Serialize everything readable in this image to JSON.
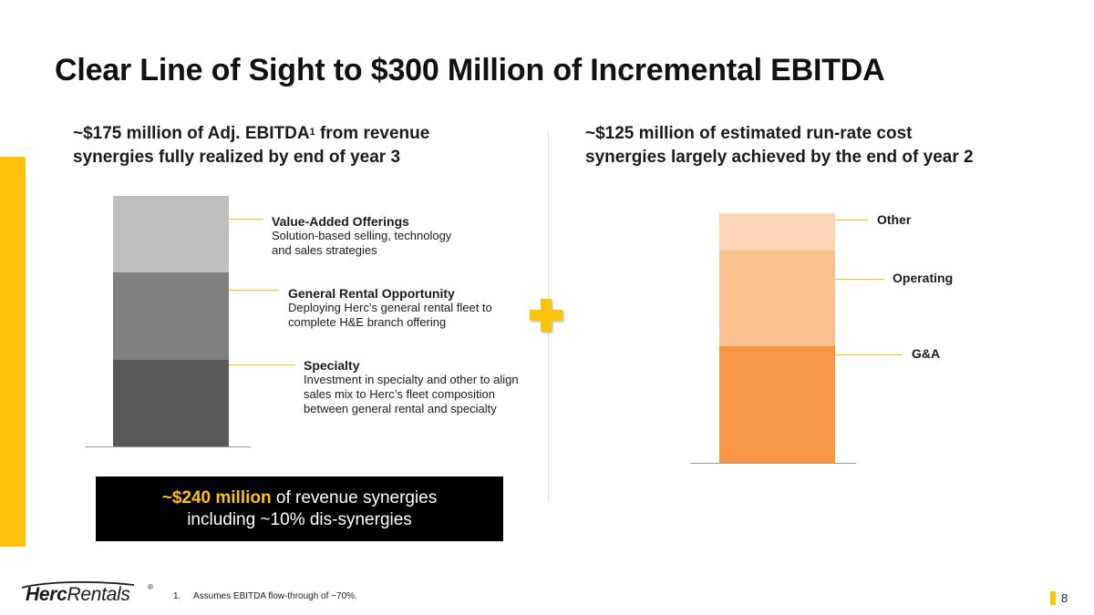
{
  "title": "Clear Line of Sight to $300 Million of Incremental EBITDA",
  "left": {
    "heading_line1_pre": "~$175 million of Adj. EBITDA",
    "heading_sup": "1",
    "heading_line1_post": " from revenue",
    "heading_line2": "synergies fully realized by end of year 3",
    "segments": [
      {
        "title": "Value-Added Offerings",
        "desc1": "Solution-based selling, technology",
        "desc2": "and sales strategies",
        "desc3": "",
        "color": "#BFBFBF"
      },
      {
        "title": "General Rental Opportunity",
        "desc1": "Deploying Herc’s general rental fleet to",
        "desc2": "complete H&E branch offering",
        "desc3": "",
        "color": "#808080"
      },
      {
        "title": "Specialty",
        "desc1": "Investment in specialty and other to align",
        "desc2": "sales mix to Herc’s fleet composition",
        "desc3": "between general rental and specialty",
        "color": "#595959"
      }
    ],
    "leader_color": "#FFC20E"
  },
  "right": {
    "heading_line1": "~$125 million of estimated run-rate cost",
    "heading_line2": "synergies largely achieved by the end of year 2",
    "segments": [
      {
        "label": "Other",
        "color": "#FCD5B5"
      },
      {
        "label": "Operating",
        "color": "#F9C090"
      },
      {
        "label": "G&A",
        "color": "#F79646"
      }
    ],
    "leader_color": "#FFC20E"
  },
  "callout": {
    "highlight": "~$240 million",
    "line1_rest": " of revenue synergies",
    "line2": "including ~10% dis-synergies"
  },
  "footer": {
    "logo_text": "HercRentals",
    "logo_herc": "Herc",
    "logo_rentals": "Rentals",
    "logo_reg": "®",
    "footnote_number": "1.",
    "footnote_text": "Assumes EBITDA flow-through of ~70%.",
    "page_number": "8"
  },
  "colors": {
    "accent": "#FFC20E",
    "plus": "#FFC20E"
  }
}
